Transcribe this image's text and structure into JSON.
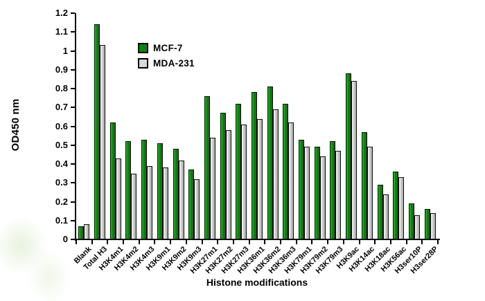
{
  "chart_data": {
    "type": "bar",
    "title": "",
    "xlabel": "Histone modifications",
    "ylabel": "OD450 nm",
    "ylim": [
      0,
      1.2
    ],
    "ytick_step": 0.1,
    "ytick_labels": [
      "0",
      "0.1",
      "0.2",
      "0.3",
      "0.4",
      "0.5",
      "0.6",
      "0.7",
      "0.8",
      "0.9",
      "1",
      "1.1",
      "1.2"
    ],
    "grid": false,
    "legend_position": "inside-top-left",
    "categories": [
      "Blank",
      "Total H3",
      "H3K4m1",
      "H3K4m2",
      "H3K4m3",
      "H3K9m1",
      "H3K9m2",
      "H3K9m3",
      "H3K27m1",
      "H3K27m2",
      "H3K27m3",
      "H3K36m1",
      "H3K36m2",
      "H3K36m3",
      "H3K79m1",
      "H3K79m2",
      "H3K79m3",
      "H3K9ac",
      "H3K14ac",
      "H3K18ac",
      "H3K56ac",
      "H3ser10P",
      "H3ser28P"
    ],
    "series": [
      {
        "name": "MCF-7",
        "color": "#0e820e",
        "values": [
          0.07,
          1.14,
          0.62,
          0.52,
          0.53,
          0.51,
          0.48,
          0.37,
          0.76,
          0.67,
          0.72,
          0.78,
          0.81,
          0.72,
          0.53,
          0.49,
          0.52,
          0.88,
          0.57,
          0.29,
          0.36,
          0.19,
          0.16
        ]
      },
      {
        "name": "MDA-231",
        "color": "#d9d9d9",
        "values": [
          0.08,
          1.03,
          0.43,
          0.35,
          0.39,
          0.38,
          0.42,
          0.32,
          0.54,
          0.58,
          0.61,
          0.64,
          0.69,
          0.62,
          0.49,
          0.44,
          0.47,
          0.84,
          0.49,
          0.24,
          0.33,
          0.13,
          0.14
        ]
      }
    ]
  }
}
